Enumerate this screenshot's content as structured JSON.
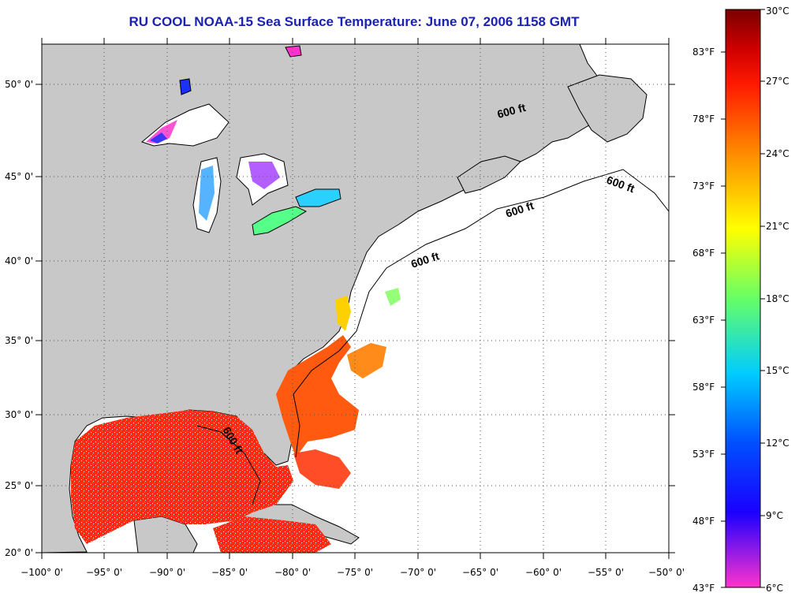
{
  "title": "RU COOL  NOAA-15  Sea Surface Temperature:  June 07, 2006 1158 GMT",
  "lon_labels": [
    "−100° 0'",
    "−95° 0'",
    "−90° 0'",
    "−85° 0'",
    "−80° 0'",
    "−75° 0'",
    "−70° 0'",
    "−65° 0'",
    "−60° 0'",
    "−55° 0'",
    "−50° 0'"
  ],
  "lat_labels": [
    "50° 0'",
    "45° 0'",
    "40° 0'",
    "35° 0'",
    "30° 0'",
    "25° 0'",
    "20° 0'"
  ],
  "isobath_labels": [
    "600 ft",
    "600 ft",
    "600 ft",
    "600 ft",
    "600 ft"
  ],
  "colorbar": {
    "celsius": [
      "30°C",
      "27°C",
      "24°C",
      "21°C",
      "18°C",
      "15°C",
      "12°C",
      "9°C",
      "6°C"
    ],
    "fahrenheit": [
      "83°F",
      "78°F",
      "73°F",
      "68°F",
      "63°F",
      "58°F",
      "53°F",
      "48°F",
      "43°F"
    ],
    "colors": [
      "#7a0000",
      "#ff1a00",
      "#ff8c00",
      "#ffff00",
      "#66ff66",
      "#00ccff",
      "#0050ff",
      "#1a00ff",
      "#ff33cc"
    ]
  },
  "colors": {
    "land": "#c8c8c8",
    "ocean": "#ffffff",
    "sst_warm": "#ff2a10",
    "title": "#1a22b4"
  }
}
